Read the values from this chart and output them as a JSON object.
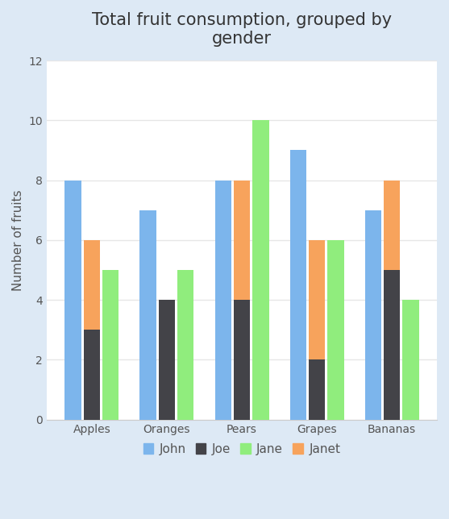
{
  "title": "Total fruit consumption, grouped by\ngender",
  "ylabel": "Number of fruits",
  "categories": [
    "Apples",
    "Oranges",
    "Pears",
    "Grapes",
    "Bananas"
  ],
  "series": {
    "John": [
      8,
      7,
      8,
      9,
      7
    ],
    "Joe": [
      3,
      4,
      4,
      2,
      5
    ],
    "Jane": [
      5,
      5,
      10,
      6,
      4
    ],
    "Janet": [
      3,
      0,
      4,
      4,
      3
    ]
  },
  "colors": {
    "John": "#7cb5ec",
    "Joe": "#434348",
    "Jane": "#90ed7d",
    "Janet": "#f7a35c"
  },
  "ylim": [
    0,
    12
  ],
  "yticks": [
    0,
    2,
    4,
    6,
    8,
    10,
    12
  ],
  "bar_width": 0.22,
  "background_color": "#ffffff",
  "outer_bg": "#dde9f5",
  "grid_color": "#e6e6e6",
  "title_fontsize": 15,
  "label_fontsize": 11,
  "tick_fontsize": 10,
  "legend_fontsize": 11
}
